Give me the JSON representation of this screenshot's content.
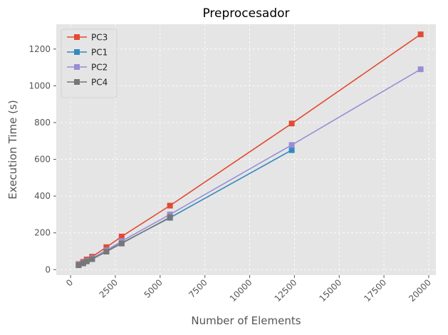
{
  "chart_data": {
    "type": "line",
    "title": "Preprocesador",
    "xlabel": "Number of Elements",
    "ylabel": "Execution Time (s)",
    "xlim": [
      -800,
      20400
    ],
    "ylim": [
      -30,
      1335
    ],
    "xticks": [
      0,
      2500,
      5000,
      7500,
      10000,
      12500,
      15000,
      17500,
      20000
    ],
    "xtick_labels": [
      "0",
      "2500",
      "5000",
      "7500",
      "10000",
      "12500",
      "15000",
      "17500",
      "20000"
    ],
    "yticks": [
      0,
      200,
      400,
      600,
      800,
      1000,
      1200
    ],
    "ytick_labels": [
      "0",
      "200",
      "400",
      "600",
      "800",
      "1000",
      "1200"
    ],
    "grid": true,
    "legend_position": "top-left",
    "series": [
      {
        "name": "PC3",
        "color": "#E24A33",
        "x": [
          450,
          700,
          900,
          1200,
          2000,
          2850,
          5550,
          12350,
          19550
        ],
        "y": [
          30,
          42,
          55,
          70,
          122,
          180,
          348,
          795,
          1280
        ]
      },
      {
        "name": "PC1",
        "color": "#348ABD",
        "x": [
          450,
          700,
          900,
          1200,
          2000,
          2850,
          5550,
          12350
        ],
        "y": [
          25,
          35,
          46,
          58,
          100,
          145,
          282,
          650
        ]
      },
      {
        "name": "PC2",
        "color": "#988ED5",
        "x": [
          450,
          700,
          900,
          1200,
          2000,
          2850,
          5550,
          12350,
          19550
        ],
        "y": [
          27,
          37,
          48,
          62,
          105,
          155,
          300,
          678,
          1090
        ]
      },
      {
        "name": "PC4",
        "color": "#777777",
        "x": [
          450,
          700,
          900,
          1200,
          2000,
          2850,
          5550
        ],
        "y": [
          24,
          34,
          45,
          57,
          98,
          142,
          285
        ]
      }
    ]
  }
}
